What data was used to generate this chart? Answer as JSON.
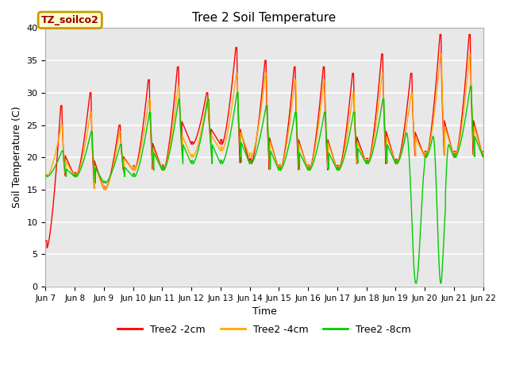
{
  "title": "Tree 2 Soil Temperature",
  "xlabel": "Time",
  "ylabel": "Soil Temperature (C)",
  "ylim": [
    0,
    40
  ],
  "legend_label": "TZ_soilco2",
  "series_labels": [
    "Tree2 -2cm",
    "Tree2 -4cm",
    "Tree2 -8cm"
  ],
  "series_colors": [
    "#ff0000",
    "#ffaa00",
    "#00cc00"
  ],
  "bg_color": "#e8e8e8",
  "fig_bg": "#ffffff",
  "grid_color": "#ffffff",
  "yticks": [
    0,
    5,
    10,
    15,
    20,
    25,
    30,
    35,
    40
  ],
  "xtick_labels": [
    "Jun 7",
    "Jun 8",
    "Jun 9",
    "Jun 10",
    "Jun 11",
    "Jun 12",
    "Jun 13",
    "Jun 14",
    "Jun 15",
    "Jun 16",
    "Jun 17",
    "Jun 18",
    "Jun 19",
    "Jun 20",
    "Jun 21",
    "Jun 22"
  ],
  "annotation_box_color": "#ffffcc",
  "annotation_text_color": "#990000",
  "annotation_border_color": "#cc9900"
}
